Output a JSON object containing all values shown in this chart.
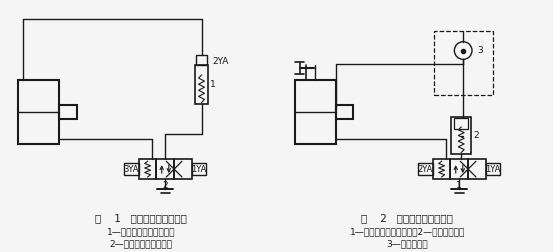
{
  "title1": "图    1   采用小型电磁阀泄压",
  "sub1a": "1—两位两通电磁换向阀；",
  "sub1b": "2—三位四通电磁换向阀",
  "title2": "图    2   采用卸荷阀控制卸压",
  "sub2a": "1—三位四通电磁换向阀；2—液控顺序阀；",
  "sub2b": "3—液控单向阀",
  "lc": "#1a1a1a",
  "bg": "#f5f5f5",
  "figsize": [
    5.53,
    2.52
  ],
  "dpi": 100
}
